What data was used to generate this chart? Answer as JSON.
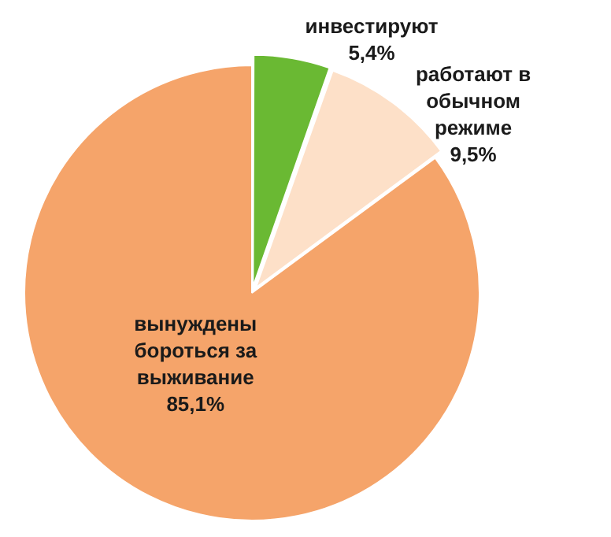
{
  "chart_data": {
    "type": "pie",
    "categories": [
      "инвестируют",
      "работают в обычном режиме",
      "вынуждены бороться за выживание"
    ],
    "values": [
      5.4,
      9.5,
      85.1
    ],
    "value_labels": [
      "5,4%",
      "9,5%",
      "85,1%"
    ],
    "colors": [
      "#6ab933",
      "#fde0c8",
      "#f5a46a"
    ],
    "legend": false
  }
}
